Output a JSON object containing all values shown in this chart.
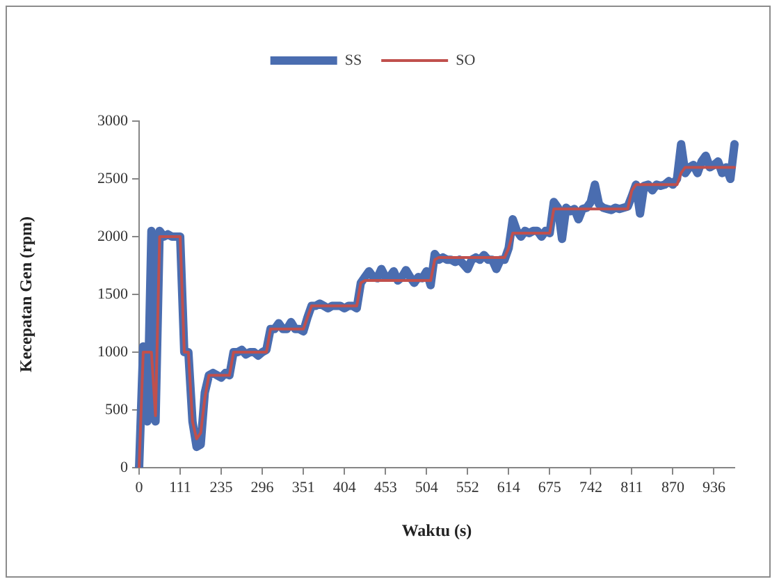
{
  "chart_data": {
    "type": "line",
    "xlabel": "Waktu (s)",
    "ylabel": "Kecepatan Gen (rpm)",
    "legend": "top",
    "categories": [
      "0",
      null,
      null,
      null,
      null,
      null,
      null,
      null,
      null,
      null,
      "111",
      null,
      null,
      null,
      null,
      null,
      null,
      null,
      null,
      null,
      "235",
      null,
      null,
      null,
      null,
      null,
      null,
      null,
      null,
      null,
      "296",
      null,
      null,
      null,
      null,
      null,
      null,
      null,
      null,
      null,
      "351",
      null,
      null,
      null,
      null,
      null,
      null,
      null,
      null,
      null,
      "404",
      null,
      null,
      null,
      null,
      null,
      null,
      null,
      null,
      null,
      "453",
      null,
      null,
      null,
      null,
      null,
      null,
      null,
      null,
      null,
      "504",
      null,
      null,
      null,
      null,
      null,
      null,
      null,
      null,
      null,
      "552",
      null,
      null,
      null,
      null,
      null,
      null,
      null,
      null,
      null,
      "614",
      null,
      null,
      null,
      null,
      null,
      null,
      null,
      null,
      null,
      "675",
      null,
      null,
      null,
      null,
      null,
      null,
      null,
      null,
      null,
      "742",
      null,
      null,
      null,
      null,
      null,
      null,
      null,
      null,
      null,
      "811",
      null,
      null,
      null,
      null,
      null,
      null,
      null,
      null,
      null,
      "870",
      null,
      null,
      null,
      null,
      null,
      null,
      null,
      null,
      null,
      "936",
      null,
      null,
      null,
      null,
      null
    ],
    "series": [
      {
        "name": "SS",
        "color": "#4a6db0",
        "values": [
          0,
          1050,
          400,
          2050,
          400,
          2050,
          2000,
          2020,
          2000,
          2000,
          2000,
          1000,
          1000,
          400,
          180,
          200,
          650,
          800,
          820,
          800,
          780,
          820,
          800,
          1000,
          1000,
          1020,
          980,
          1000,
          1000,
          970,
          1000,
          1020,
          1200,
          1200,
          1250,
          1200,
          1200,
          1260,
          1200,
          1200,
          1180,
          1300,
          1400,
          1400,
          1420,
          1400,
          1380,
          1400,
          1400,
          1400,
          1380,
          1400,
          1400,
          1380,
          1600,
          1650,
          1700,
          1650,
          1640,
          1720,
          1650,
          1650,
          1700,
          1620,
          1650,
          1710,
          1650,
          1600,
          1650,
          1640,
          1700,
          1580,
          1850,
          1800,
          1820,
          1800,
          1800,
          1780,
          1800,
          1760,
          1720,
          1800,
          1820,
          1800,
          1840,
          1800,
          1800,
          1720,
          1800,
          1800,
          1900,
          2150,
          2050,
          2000,
          2050,
          2030,
          2050,
          2050,
          2000,
          2050,
          2030,
          2300,
          2250,
          1980,
          2250,
          2220,
          2240,
          2150,
          2240,
          2250,
          2300,
          2450,
          2280,
          2250,
          2240,
          2230,
          2250,
          2240,
          2250,
          2260,
          2350,
          2450,
          2200,
          2440,
          2450,
          2400,
          2450,
          2440,
          2450,
          2480,
          2450,
          2500,
          2800,
          2550,
          2600,
          2620,
          2550,
          2650,
          2700,
          2600,
          2620,
          2650,
          2550,
          2600,
          2500,
          2800
        ]
      },
      {
        "name": "SO",
        "color": "#c0504d",
        "values": [
          0,
          1000,
          1000,
          1000,
          450,
          2000,
          2000,
          2000,
          2000,
          2000,
          2000,
          1000,
          1000,
          400,
          250,
          300,
          600,
          800,
          800,
          800,
          800,
          800,
          800,
          1000,
          1000,
          1000,
          1000,
          1000,
          1000,
          1000,
          1000,
          1000,
          1200,
          1200,
          1200,
          1200,
          1200,
          1200,
          1200,
          1200,
          1200,
          1300,
          1400,
          1400,
          1400,
          1400,
          1400,
          1400,
          1400,
          1400,
          1400,
          1400,
          1400,
          1400,
          1600,
          1620,
          1620,
          1620,
          1620,
          1620,
          1620,
          1620,
          1620,
          1620,
          1620,
          1620,
          1620,
          1620,
          1620,
          1620,
          1620,
          1620,
          1800,
          1820,
          1820,
          1820,
          1820,
          1820,
          1820,
          1820,
          1820,
          1820,
          1820,
          1820,
          1820,
          1820,
          1820,
          1820,
          1820,
          1820,
          1900,
          2030,
          2030,
          2030,
          2030,
          2030,
          2030,
          2030,
          2030,
          2030,
          2030,
          2240,
          2240,
          2240,
          2240,
          2240,
          2240,
          2240,
          2240,
          2240,
          2240,
          2240,
          2240,
          2240,
          2240,
          2240,
          2240,
          2240,
          2240,
          2240,
          2400,
          2450,
          2450,
          2450,
          2450,
          2450,
          2450,
          2450,
          2450,
          2450,
          2450,
          2450,
          2550,
          2600,
          2600,
          2600,
          2600,
          2600,
          2600,
          2600,
          2600,
          2600,
          2600,
          2600,
          2600,
          2600
        ]
      }
    ],
    "ylim": [
      0,
      3000
    ],
    "yticks": [
      0,
      500,
      1000,
      1500,
      2000,
      2500,
      3000
    ]
  }
}
